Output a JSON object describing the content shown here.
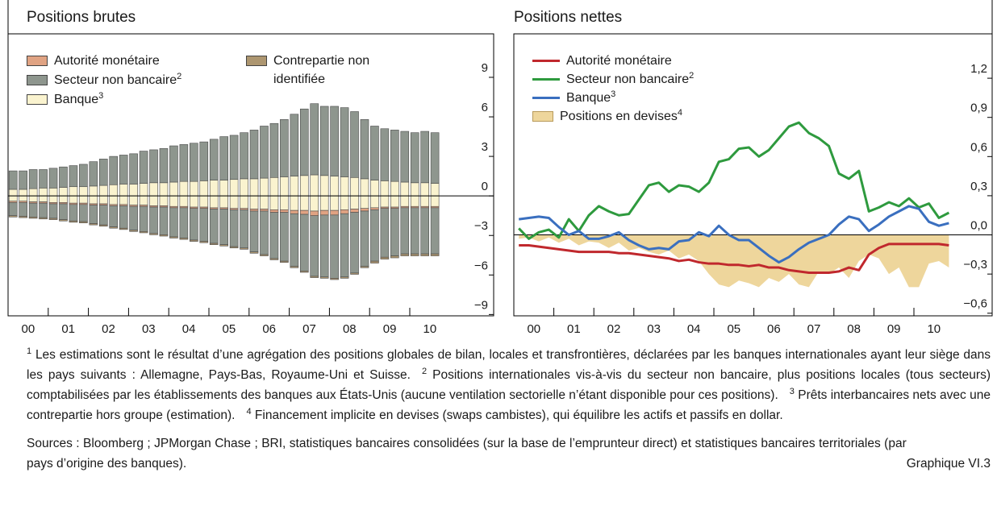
{
  "chart_data": [
    {
      "type": "stacked_bar",
      "title": "Positions brutes",
      "categories": [
        null,
        "00",
        null,
        null,
        null,
        "01",
        null,
        null,
        null,
        "02",
        null,
        null,
        null,
        "03",
        null,
        null,
        null,
        "04",
        null,
        null,
        null,
        "05",
        null,
        null,
        null,
        "06",
        null,
        null,
        null,
        "07",
        null,
        null,
        null,
        "08",
        null,
        null,
        null,
        "09",
        null,
        null,
        null,
        "10",
        null
      ],
      "ylim": [
        -9.1,
        12.3
      ],
      "yticks": [
        9,
        6,
        3,
        0,
        {
          "value": -3,
          "label": "−3"
        },
        {
          "value": -6,
          "label": "−6"
        },
        {
          "value": -9,
          "label": "−9"
        }
      ],
      "series": [
        {
          "name": "Autorité monétaire",
          "color": "#e0a383",
          "negative": [
            -0.1,
            -0.1,
            -0.1,
            -0.1,
            -0.1,
            -0.1,
            -0.1,
            -0.1,
            -0.1,
            -0.1,
            -0.1,
            -0.1,
            -0.1,
            -0.1,
            -0.1,
            -0.1,
            -0.1,
            -0.1,
            -0.1,
            -0.1,
            -0.1,
            -0.1,
            -0.1,
            -0.1,
            -0.15,
            -0.15,
            -0.2,
            -0.2,
            -0.25,
            -0.3,
            -0.35,
            -0.35,
            -0.35,
            -0.3,
            -0.25,
            -0.2,
            -0.15,
            -0.1,
            -0.1,
            -0.1,
            -0.1,
            -0.1,
            -0.1
          ]
        },
        {
          "name": "Secteur non bancaire",
          "note": "2",
          "color": "#8e968e",
          "positive": [
            1.4,
            1.4,
            1.45,
            1.4,
            1.5,
            1.55,
            1.6,
            1.7,
            1.85,
            2.0,
            2.15,
            2.2,
            2.3,
            2.45,
            2.5,
            2.6,
            2.75,
            2.8,
            2.9,
            2.95,
            3.1,
            3.3,
            3.35,
            3.5,
            3.7,
            3.95,
            4.1,
            4.35,
            4.7,
            5.05,
            5.4,
            5.25,
            5.3,
            5.25,
            5.0,
            4.5,
            4.1,
            3.95,
            3.9,
            3.85,
            3.8,
            3.9,
            3.85
          ],
          "negative": [
            -1.0,
            -1.05,
            -1.05,
            -1.1,
            -1.1,
            -1.2,
            -1.25,
            -1.3,
            -1.4,
            -1.5,
            -1.6,
            -1.7,
            -1.8,
            -1.9,
            -2.0,
            -2.1,
            -2.2,
            -2.3,
            -2.4,
            -2.5,
            -2.6,
            -2.7,
            -2.8,
            -2.9,
            -3.1,
            -3.3,
            -3.5,
            -3.7,
            -4.0,
            -4.3,
            -4.6,
            -4.7,
            -4.8,
            -4.8,
            -4.6,
            -4.2,
            -3.9,
            -3.7,
            -3.6,
            -3.5,
            -3.5,
            -3.5,
            -3.5
          ]
        },
        {
          "name": "Banque",
          "note": "3",
          "color": "#faf3cf",
          "positive": [
            0.5,
            0.5,
            0.55,
            0.6,
            0.6,
            0.65,
            0.7,
            0.7,
            0.75,
            0.8,
            0.85,
            0.9,
            0.9,
            0.95,
            1.0,
            1.0,
            1.05,
            1.1,
            1.1,
            1.15,
            1.2,
            1.2,
            1.25,
            1.3,
            1.3,
            1.35,
            1.4,
            1.45,
            1.5,
            1.55,
            1.6,
            1.55,
            1.5,
            1.45,
            1.4,
            1.3,
            1.2,
            1.15,
            1.1,
            1.05,
            1.0,
            1.0,
            0.95
          ],
          "negative": [
            -0.4,
            -0.4,
            -0.45,
            -0.45,
            -0.5,
            -0.5,
            -0.55,
            -0.55,
            -0.6,
            -0.6,
            -0.65,
            -0.65,
            -0.7,
            -0.7,
            -0.75,
            -0.75,
            -0.8,
            -0.8,
            -0.85,
            -0.85,
            -0.9,
            -0.9,
            -0.95,
            -0.95,
            -1.0,
            -1.0,
            -1.05,
            -1.05,
            -1.1,
            -1.1,
            -1.15,
            -1.1,
            -1.1,
            -1.05,
            -1.0,
            -0.95,
            -0.9,
            -0.85,
            -0.85,
            -0.8,
            -0.8,
            -0.8,
            -0.8
          ]
        },
        {
          "name": "Contrepartie non identifiée",
          "color": "#ad9670",
          "negative": [
            -0.1,
            -0.1,
            -0.1,
            -0.1,
            -0.1,
            -0.1,
            -0.1,
            -0.1,
            -0.1,
            -0.1,
            -0.1,
            -0.1,
            -0.1,
            -0.1,
            -0.1,
            -0.1,
            -0.1,
            -0.1,
            -0.1,
            -0.1,
            -0.1,
            -0.1,
            -0.1,
            -0.1,
            -0.1,
            -0.1,
            -0.1,
            -0.1,
            -0.1,
            -0.1,
            -0.1,
            -0.1,
            -0.1,
            -0.1,
            -0.1,
            -0.1,
            -0.15,
            -0.15,
            -0.15,
            -0.15,
            -0.15,
            -0.15,
            -0.15
          ]
        }
      ]
    },
    {
      "type": "line",
      "title": "Positions nettes",
      "categories": [
        null,
        "00",
        null,
        null,
        null,
        "01",
        null,
        null,
        null,
        "02",
        null,
        null,
        null,
        "03",
        null,
        null,
        null,
        "04",
        null,
        null,
        null,
        "05",
        null,
        null,
        null,
        "06",
        null,
        null,
        null,
        "07",
        null,
        null,
        null,
        "08",
        null,
        null,
        null,
        "09",
        null,
        null,
        null,
        "10",
        null,
        null
      ],
      "ylim": [
        -0.62,
        1.54
      ],
      "yticks": [
        {
          "value": 1.2,
          "label": "1,2"
        },
        {
          "value": 0.9,
          "label": "0,9"
        },
        {
          "value": 0.6,
          "label": "0,6"
        },
        {
          "value": 0.3,
          "label": "0,3"
        },
        {
          "value": 0,
          "label": "0,0"
        },
        {
          "value": -0.3,
          "label": "−0,3"
        },
        {
          "value": -0.6,
          "label": "−0,6"
        }
      ],
      "series": [
        {
          "name": "Autorité monétaire",
          "color": "#c0282d",
          "values": [
            -0.08,
            -0.08,
            -0.09,
            -0.1,
            -0.11,
            -0.12,
            -0.13,
            -0.13,
            -0.13,
            -0.13,
            -0.14,
            -0.14,
            -0.15,
            -0.16,
            -0.17,
            -0.18,
            -0.2,
            -0.19,
            -0.21,
            -0.22,
            -0.22,
            -0.23,
            -0.23,
            -0.24,
            -0.23,
            -0.25,
            -0.25,
            -0.27,
            -0.28,
            -0.29,
            -0.29,
            -0.29,
            -0.28,
            -0.25,
            -0.27,
            -0.15,
            -0.1,
            -0.07,
            -0.07,
            -0.07,
            -0.07,
            -0.07,
            -0.07,
            -0.08
          ]
        },
        {
          "name": "Secteur non bancaire",
          "note": "2",
          "color": "#2e9a3e",
          "values": [
            0.05,
            -0.03,
            0.02,
            0.04,
            -0.02,
            0.12,
            0.03,
            0.15,
            0.22,
            0.18,
            0.15,
            0.16,
            0.27,
            0.38,
            0.4,
            0.33,
            0.38,
            0.37,
            0.33,
            0.4,
            0.56,
            0.58,
            0.66,
            0.67,
            0.6,
            0.65,
            0.74,
            0.83,
            0.86,
            0.78,
            0.74,
            0.68,
            0.47,
            0.43,
            0.49,
            0.18,
            0.21,
            0.25,
            0.22,
            0.28,
            0.21,
            0.24,
            0.13,
            0.17
          ]
        },
        {
          "name": "Banque",
          "note": "3",
          "color": "#3a6fbf",
          "values": [
            0.12,
            0.13,
            0.14,
            0.13,
            0.06,
            0.0,
            0.03,
            -0.03,
            -0.03,
            -0.01,
            0.02,
            -0.04,
            -0.08,
            -0.11,
            -0.1,
            -0.11,
            -0.05,
            -0.04,
            0.02,
            -0.01,
            0.07,
            0.0,
            -0.04,
            -0.04,
            -0.1,
            -0.16,
            -0.21,
            -0.17,
            -0.11,
            -0.06,
            -0.03,
            0.0,
            0.08,
            0.14,
            0.12,
            0.03,
            0.08,
            0.14,
            0.18,
            0.22,
            0.2,
            0.1,
            0.07,
            0.09
          ]
        },
        {
          "name": "Positions en devises",
          "note": "4",
          "color": "#eed69c",
          "type": "area",
          "values": [
            -0.03,
            -0.02,
            -0.05,
            -0.02,
            -0.06,
            -0.03,
            -0.08,
            -0.05,
            -0.06,
            -0.1,
            -0.06,
            -0.12,
            -0.1,
            -0.13,
            -0.15,
            -0.12,
            -0.18,
            -0.15,
            -0.2,
            -0.3,
            -0.38,
            -0.4,
            -0.35,
            -0.37,
            -0.4,
            -0.33,
            -0.36,
            -0.3,
            -0.38,
            -0.4,
            -0.28,
            -0.3,
            -0.25,
            -0.33,
            -0.2,
            -0.15,
            -0.18,
            -0.3,
            -0.25,
            -0.4,
            -0.4,
            -0.22,
            -0.2,
            -0.25
          ]
        }
      ]
    }
  ],
  "footnotes": [
    {
      "ref": "1",
      "text": "Les estimations sont le résultat d’une agrégation des positions globales de bilan, locales et transfrontières, déclarées par les banques internationales ayant leur siège dans les pays suivants : Allemagne, Pays-Bas, Royaume-Uni et Suisse."
    },
    {
      "ref": "2",
      "text": "Positions internationales vis-à-vis du secteur non bancaire, plus positions locales (tous secteurs) comptabilisées par les établissements des banques aux États-Unis (aucune ventilation sectorielle n’étant disponible pour ces positions)."
    },
    {
      "ref": "3",
      "text": "Prêts interbancaires nets avec une contrepartie hors groupe (estimation)."
    },
    {
      "ref": "4",
      "text": "Financement implicite en devises (swaps cambistes), qui équilibre les actifs et passifs en dollar."
    }
  ],
  "sources": "Sources : Bloomberg ; JPMorgan Chase ; BRI, statistiques bancaires consolidées (sur la base de l’emprunteur direct) et statistiques bancaires territoriales (par pays d’origine des banques).",
  "figure_id": "Graphique VI.3"
}
